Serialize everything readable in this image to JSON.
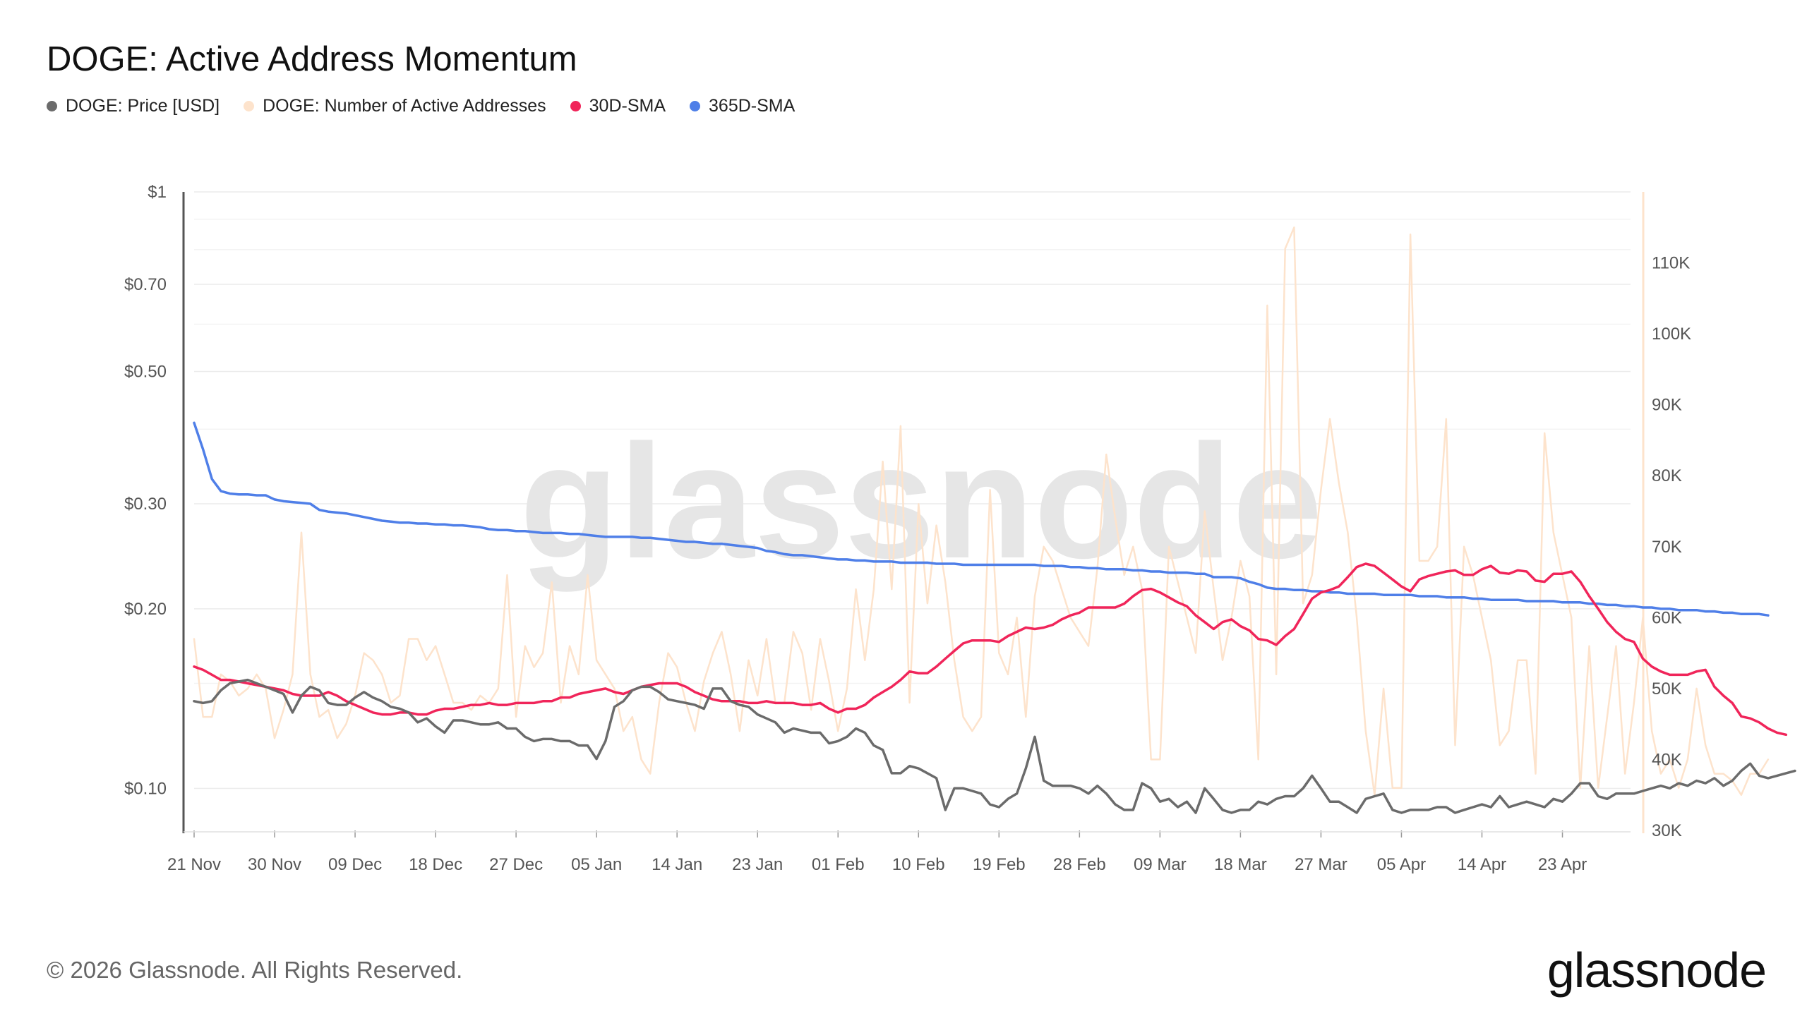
{
  "title": "DOGE: Active Address Momentum",
  "footer": "© 2026 Glassnode. All Rights Reserved.",
  "brand": "glassnode",
  "watermark": "glassnode",
  "legend": [
    {
      "label": "DOGE: Price [USD]",
      "color": "#6b6b6b"
    },
    {
      "label": "DOGE: Number of Active Addresses",
      "color": "#fde3cc"
    },
    {
      "label": "30D-SMA",
      "color": "#f0255a"
    },
    {
      "label": "365D-SMA",
      "color": "#4f7fe8"
    }
  ],
  "chart_data": {
    "type": "line",
    "title": "DOGE: Active Address Momentum",
    "x_start": "21 Nov",
    "x_ticks": [
      "21 Nov",
      "30 Nov",
      "09 Dec",
      "18 Dec",
      "27 Dec",
      "05 Jan",
      "14 Jan",
      "23 Jan",
      "01 Feb",
      "10 Feb",
      "19 Feb",
      "28 Feb",
      "09 Mar",
      "18 Mar",
      "27 Mar",
      "05 Apr",
      "14 Apr",
      "23 Apr"
    ],
    "y_left": {
      "scale": "log",
      "range": [
        0.085,
        1.0
      ],
      "ticks": [
        "$1",
        "$0.70",
        "$0.50",
        "$0.30",
        "$0.20",
        "$0.10"
      ],
      "tick_values": [
        1.0,
        0.7,
        0.5,
        0.3,
        0.2,
        0.1
      ]
    },
    "y_right": {
      "scale": "linear",
      "range": [
        30000,
        120000
      ],
      "ticks": [
        "110K",
        "100K",
        "90K",
        "80K",
        "70K",
        "60K",
        "50K",
        "40K",
        "30K"
      ],
      "tick_values": [
        110000,
        100000,
        90000,
        80000,
        70000,
        60000,
        50000,
        40000,
        30000
      ]
    },
    "series": [
      {
        "name": "DOGE: Number of Active Addresses",
        "axis": "right",
        "color": "#fde3cc",
        "step_days": 1,
        "values": [
          57000,
          46000,
          46000,
          52000,
          51000,
          49000,
          50000,
          52000,
          50000,
          43000,
          47000,
          52000,
          72000,
          52000,
          46000,
          47000,
          43000,
          45000,
          49000,
          55000,
          54000,
          52000,
          48000,
          49000,
          57000,
          57000,
          54000,
          56000,
          52000,
          48000,
          48000,
          47000,
          49000,
          48000,
          50000,
          66000,
          46000,
          56000,
          53000,
          55000,
          65000,
          48000,
          56000,
          52000,
          66000,
          54000,
          52000,
          50000,
          44000,
          46000,
          40000,
          38000,
          48000,
          55000,
          53000,
          48000,
          44000,
          51000,
          55000,
          58000,
          52000,
          44000,
          54000,
          49000,
          57000,
          48000,
          48000,
          58000,
          55000,
          47000,
          57000,
          51000,
          44000,
          50000,
          64000,
          54000,
          64000,
          82000,
          64000,
          87000,
          48000,
          76000,
          62000,
          73000,
          65000,
          54000,
          46000,
          44000,
          46000,
          78000,
          55000,
          52000,
          60000,
          46000,
          63000,
          70000,
          68000,
          64000,
          60000,
          58000,
          56000,
          67000,
          83000,
          74000,
          66000,
          70000,
          64000,
          40000,
          40000,
          70000,
          65000,
          60000,
          55000,
          75000,
          64000,
          54000,
          60000,
          68000,
          63000,
          40000,
          104000,
          52000,
          112000,
          115000,
          62000,
          66000,
          78000,
          88000,
          79000,
          72000,
          60000,
          44000,
          35000,
          50000,
          36000,
          36000,
          114000,
          68000,
          68000,
          70000,
          88000,
          42000,
          70000,
          66000,
          60000,
          54000,
          42000,
          44000,
          54000,
          54000,
          38000,
          86000,
          72000,
          66000,
          60000,
          36000,
          56000,
          36000,
          46000,
          56000,
          38000,
          48000,
          60000,
          44000,
          38000,
          40000,
          36000,
          40000,
          50000,
          42000,
          38000,
          38000,
          37000,
          35000,
          38000,
          38000,
          40000
        ]
      },
      {
        "name": "365D-SMA",
        "axis": "left",
        "color": "#4f7fe8",
        "step_days": 1,
        "values": [
          0.41,
          0.37,
          0.33,
          0.315,
          0.312,
          0.311,
          0.311,
          0.31,
          0.31,
          0.305,
          0.303,
          0.302,
          0.301,
          0.3,
          0.293,
          0.291,
          0.29,
          0.289,
          0.287,
          0.285,
          0.283,
          0.281,
          0.28,
          0.279,
          0.279,
          0.278,
          0.278,
          0.277,
          0.277,
          0.276,
          0.276,
          0.275,
          0.274,
          0.272,
          0.271,
          0.271,
          0.27,
          0.27,
          0.269,
          0.268,
          0.268,
          0.268,
          0.267,
          0.267,
          0.266,
          0.265,
          0.264,
          0.264,
          0.264,
          0.264,
          0.263,
          0.263,
          0.262,
          0.261,
          0.26,
          0.259,
          0.259,
          0.258,
          0.257,
          0.257,
          0.256,
          0.255,
          0.254,
          0.253,
          0.25,
          0.249,
          0.247,
          0.246,
          0.246,
          0.245,
          0.244,
          0.243,
          0.242,
          0.242,
          0.241,
          0.241,
          0.24,
          0.24,
          0.24,
          0.239,
          0.239,
          0.239,
          0.239,
          0.238,
          0.238,
          0.238,
          0.237,
          0.237,
          0.237,
          0.237,
          0.237,
          0.237,
          0.237,
          0.237,
          0.237,
          0.236,
          0.236,
          0.236,
          0.235,
          0.235,
          0.234,
          0.234,
          0.233,
          0.233,
          0.233,
          0.232,
          0.232,
          0.231,
          0.231,
          0.23,
          0.23,
          0.23,
          0.229,
          0.229,
          0.226,
          0.226,
          0.226,
          0.225,
          0.222,
          0.22,
          0.217,
          0.216,
          0.216,
          0.215,
          0.215,
          0.214,
          0.214,
          0.213,
          0.213,
          0.212,
          0.212,
          0.212,
          0.212,
          0.211,
          0.211,
          0.211,
          0.211,
          0.21,
          0.21,
          0.21,
          0.209,
          0.209,
          0.209,
          0.208,
          0.208,
          0.207,
          0.207,
          0.207,
          0.207,
          0.206,
          0.206,
          0.206,
          0.206,
          0.205,
          0.205,
          0.205,
          0.204,
          0.204,
          0.203,
          0.203,
          0.202,
          0.202,
          0.201,
          0.201,
          0.2,
          0.2,
          0.199,
          0.199,
          0.199,
          0.198,
          0.198,
          0.197,
          0.197,
          0.196,
          0.196,
          0.196,
          0.195
        ]
      },
      {
        "name": "30D-SMA",
        "axis": "left",
        "color": "#f0255a",
        "step_days": 1,
        "values": [
          0.16,
          0.158,
          0.155,
          0.152,
          0.152,
          0.151,
          0.15,
          0.149,
          0.148,
          0.147,
          0.146,
          0.144,
          0.143,
          0.143,
          0.143,
          0.145,
          0.143,
          0.14,
          0.138,
          0.136,
          0.134,
          0.133,
          0.133,
          0.134,
          0.134,
          0.133,
          0.133,
          0.135,
          0.136,
          0.136,
          0.137,
          0.138,
          0.138,
          0.139,
          0.138,
          0.138,
          0.139,
          0.139,
          0.139,
          0.14,
          0.14,
          0.142,
          0.142,
          0.144,
          0.145,
          0.146,
          0.147,
          0.145,
          0.144,
          0.146,
          0.148,
          0.149,
          0.15,
          0.15,
          0.15,
          0.148,
          0.145,
          0.143,
          0.141,
          0.14,
          0.14,
          0.14,
          0.139,
          0.139,
          0.14,
          0.139,
          0.139,
          0.139,
          0.138,
          0.138,
          0.139,
          0.136,
          0.134,
          0.136,
          0.136,
          0.138,
          0.142,
          0.145,
          0.148,
          0.152,
          0.157,
          0.156,
          0.156,
          0.16,
          0.165,
          0.17,
          0.175,
          0.177,
          0.177,
          0.177,
          0.176,
          0.18,
          0.183,
          0.186,
          0.185,
          0.186,
          0.188,
          0.192,
          0.195,
          0.197,
          0.201,
          0.201,
          0.201,
          0.201,
          0.204,
          0.21,
          0.215,
          0.216,
          0.213,
          0.209,
          0.205,
          0.202,
          0.195,
          0.19,
          0.185,
          0.19,
          0.192,
          0.187,
          0.184,
          0.178,
          0.177,
          0.174,
          0.18,
          0.185,
          0.196,
          0.208,
          0.213,
          0.215,
          0.218,
          0.226,
          0.235,
          0.238,
          0.236,
          0.23,
          0.224,
          0.218,
          0.214,
          0.224,
          0.227,
          0.229,
          0.231,
          0.232,
          0.228,
          0.228,
          0.233,
          0.236,
          0.23,
          0.229,
          0.232,
          0.231,
          0.223,
          0.222,
          0.229,
          0.229,
          0.231,
          0.222,
          0.21,
          0.2,
          0.19,
          0.183,
          0.178,
          0.176,
          0.165,
          0.16,
          0.157,
          0.155,
          0.155,
          0.155,
          0.157,
          0.158,
          0.148,
          0.143,
          0.139,
          0.132,
          0.131,
          0.129,
          0.126,
          0.124,
          0.123
        ]
      },
      {
        "name": "DOGE: Price [USD]",
        "axis": "left",
        "color": "#6b6b6b",
        "step_days": 1,
        "values": [
          0.14,
          0.139,
          0.14,
          0.146,
          0.15,
          0.151,
          0.152,
          0.15,
          0.148,
          0.146,
          0.144,
          0.134,
          0.143,
          0.148,
          0.146,
          0.139,
          0.138,
          0.138,
          0.142,
          0.145,
          0.142,
          0.14,
          0.137,
          0.136,
          0.134,
          0.129,
          0.131,
          0.127,
          0.124,
          0.13,
          0.13,
          0.129,
          0.128,
          0.128,
          0.129,
          0.126,
          0.126,
          0.122,
          0.12,
          0.121,
          0.121,
          0.12,
          0.12,
          0.118,
          0.118,
          0.112,
          0.12,
          0.137,
          0.14,
          0.146,
          0.148,
          0.148,
          0.145,
          0.141,
          0.14,
          0.139,
          0.138,
          0.136,
          0.147,
          0.147,
          0.14,
          0.138,
          0.137,
          0.133,
          0.131,
          0.129,
          0.124,
          0.126,
          0.125,
          0.124,
          0.124,
          0.119,
          0.12,
          0.122,
          0.126,
          0.124,
          0.118,
          0.116,
          0.106,
          0.106,
          0.109,
          0.108,
          0.106,
          0.104,
          0.092,
          0.1,
          0.1,
          0.099,
          0.098,
          0.094,
          0.093,
          0.096,
          0.098,
          0.108,
          0.122,
          0.103,
          0.101,
          0.101,
          0.101,
          0.1,
          0.098,
          0.101,
          0.098,
          0.094,
          0.092,
          0.092,
          0.102,
          0.1,
          0.095,
          0.096,
          0.093,
          0.095,
          0.091,
          0.1,
          0.096,
          0.092,
          0.091,
          0.092,
          0.092,
          0.095,
          0.094,
          0.096,
          0.097,
          0.097,
          0.1,
          0.105,
          0.1,
          0.095,
          0.095,
          0.093,
          0.091,
          0.096,
          0.097,
          0.098,
          0.092,
          0.091,
          0.092,
          0.092,
          0.092,
          0.093,
          0.093,
          0.091,
          0.092,
          0.093,
          0.094,
          0.093,
          0.097,
          0.093,
          0.094,
          0.095,
          0.094,
          0.093,
          0.096,
          0.095,
          0.098,
          0.102,
          0.102,
          0.097,
          0.096,
          0.098,
          0.098,
          0.098,
          0.099,
          0.1,
          0.101,
          0.1,
          0.102,
          0.101,
          0.103,
          0.102,
          0.104,
          0.101,
          0.103,
          0.107,
          0.11,
          0.105,
          0.104,
          0.105,
          0.106,
          0.107
        ]
      }
    ]
  }
}
